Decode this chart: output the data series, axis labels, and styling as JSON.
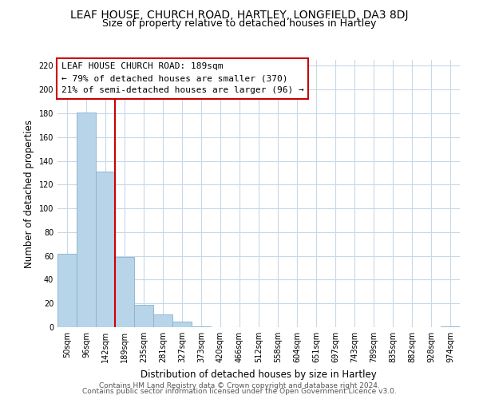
{
  "title": "LEAF HOUSE, CHURCH ROAD, HARTLEY, LONGFIELD, DA3 8DJ",
  "subtitle": "Size of property relative to detached houses in Hartley",
  "xlabel": "Distribution of detached houses by size in Hartley",
  "ylabel": "Number of detached properties",
  "bar_labels": [
    "50sqm",
    "96sqm",
    "142sqm",
    "189sqm",
    "235sqm",
    "281sqm",
    "327sqm",
    "373sqm",
    "420sqm",
    "466sqm",
    "512sqm",
    "558sqm",
    "604sqm",
    "651sqm",
    "697sqm",
    "743sqm",
    "789sqm",
    "835sqm",
    "882sqm",
    "928sqm",
    "974sqm"
  ],
  "bar_values": [
    62,
    181,
    131,
    59,
    19,
    11,
    5,
    1,
    0,
    0,
    0,
    0,
    0,
    0,
    0,
    0,
    0,
    0,
    0,
    0,
    1
  ],
  "bar_color": "#b8d4e8",
  "bar_edge_color": "#8ab0cc",
  "vline_x": 2.5,
  "vline_color": "#cc0000",
  "annotation_box_text": "LEAF HOUSE CHURCH ROAD: 189sqm\n← 79% of detached houses are smaller (370)\n21% of semi-detached houses are larger (96) →",
  "ylim": [
    0,
    225
  ],
  "yticks": [
    0,
    20,
    40,
    60,
    80,
    100,
    120,
    140,
    160,
    180,
    200,
    220
  ],
  "footer_line1": "Contains HM Land Registry data © Crown copyright and database right 2024.",
  "footer_line2": "Contains public sector information licensed under the Open Government Licence v3.0.",
  "background_color": "#ffffff",
  "grid_color": "#c8d8e8",
  "title_fontsize": 10,
  "subtitle_fontsize": 9,
  "axis_label_fontsize": 8.5,
  "tick_fontsize": 7,
  "annotation_fontsize": 8,
  "footer_fontsize": 6.5
}
